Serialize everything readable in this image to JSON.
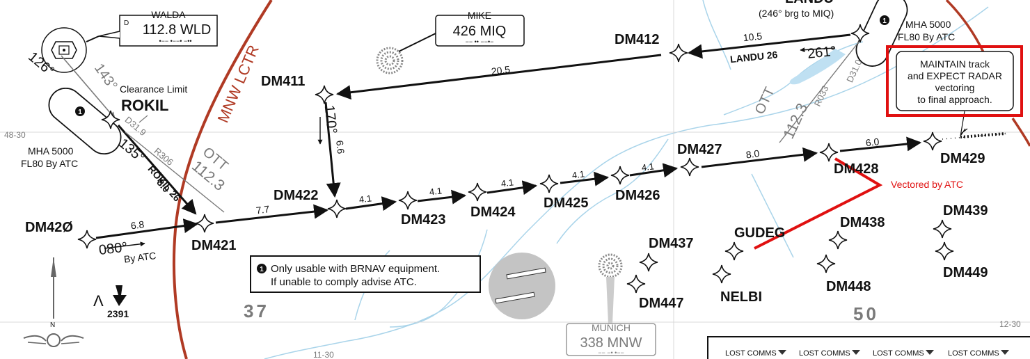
{
  "navaids": {
    "walda": {
      "name": "WALDA",
      "prefix": "D",
      "freq_ident": "112.8 WLD"
    },
    "mike": {
      "name": "MIKE",
      "freq_ident": "426 MIQ"
    },
    "munich": {
      "name": "MUNICH",
      "freq_ident": "338 MNW"
    }
  },
  "landu_header": {
    "name": "LANDU",
    "brg": "(246° brg to MIQ)"
  },
  "fixes": {
    "DM411": "DM411",
    "DM412": "DM412",
    "DM420": "DM42Ø",
    "DM421": "DM421",
    "DM422": "DM422",
    "DM423": "DM423",
    "DM424": "DM424",
    "DM425": "DM425",
    "DM426": "DM426",
    "DM427": "DM427",
    "DM428": "DM428",
    "DM429": "DM429",
    "DM437": "DM437",
    "DM438": "DM438",
    "DM439": "DM439",
    "DM447": "DM447",
    "DM448": "DM448",
    "DM449": "DM449",
    "GUDEG": "GUDEG",
    "NELBI": "NELBI",
    "ROKIL": "ROKIL"
  },
  "clearance_limit": "Clearance Limit",
  "legs": {
    "d_420_421": "6.8",
    "d_421_422": "7.7",
    "d_422_423": "4.1",
    "d_423_424": "4.1",
    "d_424_425": "4.1",
    "d_425_426": "4.1",
    "d_426_427": "4.1",
    "d_427_428": "8.0",
    "d_428_429": "6.0",
    "d_landu_412": "10.5",
    "d_412_411": "20.5",
    "d_411_422": "6.6",
    "rokil_dist": "8.0"
  },
  "courses": {
    "c080": "080°",
    "by_atc": "By ATC",
    "c126": "126°",
    "c143": "143°",
    "c135": "135°",
    "c170": "170°",
    "c261": "261°",
    "landu26": "LANDU 26",
    "rokil26": "ROKIL 26"
  },
  "radials": {
    "d319": "D31.9",
    "r306": "R306",
    "ott_left": "OTT",
    "ott_left_freq": "112.3",
    "ott_right": "OTT",
    "ott_right_freq": "112.3",
    "r033": "R033",
    "d310": "D31.0"
  },
  "mha": {
    "left_1": "MHA 5000",
    "left_2": "FL80 By ATC",
    "right_1": "MHA 5000",
    "right_2": "FL80 By ATC"
  },
  "boundary": "MNW LCTR",
  "notes": {
    "marker": "1",
    "brnav_1": "Only usable with BRNAV equipment.",
    "brnav_2": "If unable to comply advise ATC."
  },
  "callout": {
    "line1": "MAINTAIN track",
    "line2": "and EXPECT RADAR",
    "line3": "vectoring",
    "line4": "to final approach."
  },
  "vectored_label": "Vectored by ATC",
  "grid": {
    "left_lat": "48-30",
    "right_lat": "12-30",
    "bottom_lon": "11-30",
    "area37": "37",
    "area50": "50"
  },
  "obstacle": {
    "elev": "2391",
    "symbol": "Λ"
  },
  "compass": {
    "north": "N"
  },
  "lost_comms": "LOST COMMS",
  "colors": {
    "boundary_red": "#b03a24",
    "annotation_red": "#e01010",
    "river_blue": "#a9d4ea",
    "gray": "#7a7a7a"
  }
}
